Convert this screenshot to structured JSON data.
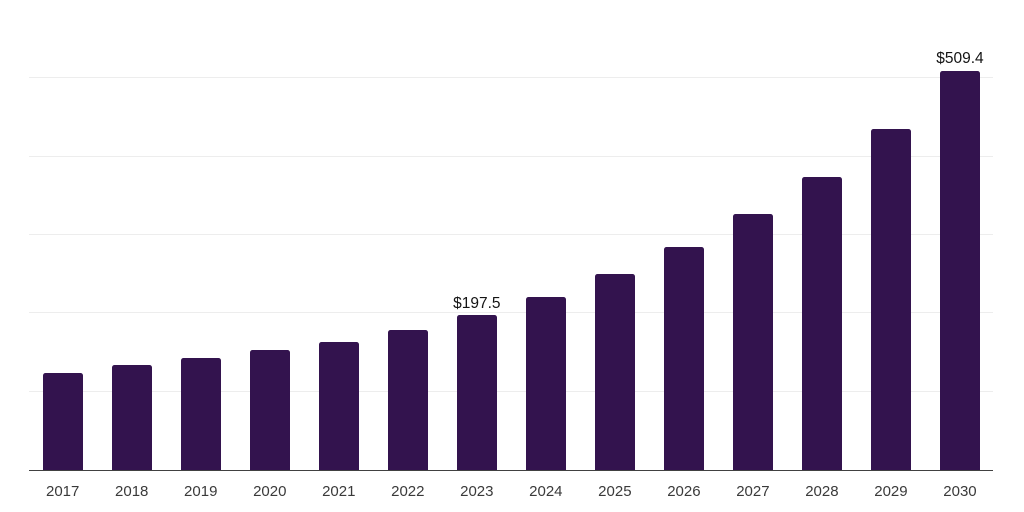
{
  "chart_data": {
    "type": "bar",
    "title": "",
    "xlabel": "",
    "ylabel": "",
    "categories": [
      "2017",
      "2018",
      "2019",
      "2020",
      "2021",
      "2022",
      "2023",
      "2024",
      "2025",
      "2026",
      "2027",
      "2028",
      "2029",
      "2030"
    ],
    "values": [
      124.0,
      134.2,
      142.8,
      153.2,
      164.0,
      178.6,
      197.5,
      220.5,
      250.4,
      284.4,
      326.8,
      374.6,
      435.0,
      509.4
    ],
    "data_labels": [
      "",
      "",
      "",
      "",
      "",
      "",
      "$197.5",
      "",
      "",
      "",
      "",
      "",
      "",
      "$509.4"
    ],
    "ylim": [
      0,
      600
    ],
    "gridline_values": [
      0,
      100,
      200,
      300,
      400,
      500,
      600
    ],
    "grid": "horizontal",
    "legend": "none",
    "colors": {
      "bar": "#33134e",
      "gridline": "#ededed",
      "axis_line": "#414141",
      "tick_label": "#3a3a3a",
      "value_label": "#141414",
      "background": "#ffffff"
    }
  }
}
